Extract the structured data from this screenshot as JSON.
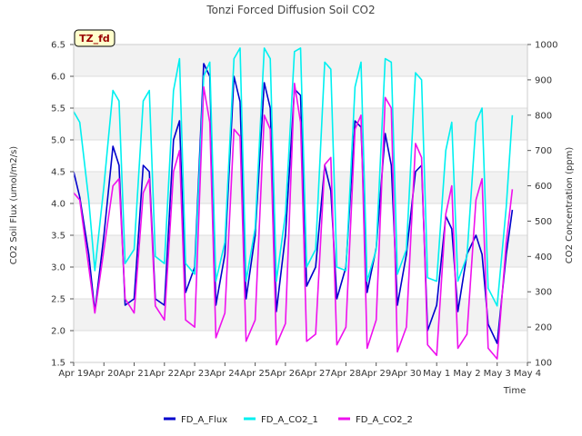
{
  "chart_data": {
    "type": "line",
    "title": "Tonzi Forced Diffusion Soil CO2",
    "site_badge": "TZ_fd",
    "xlabel": "Time",
    "ylabel_left": "CO2 Soil Flux (umol/m2/s)",
    "ylabel_right": "CO2 Concentration (ppm)",
    "x_unit": "day",
    "xlim": [
      0,
      15
    ],
    "ylim_left": [
      1.5,
      6.5
    ],
    "ylim_right": [
      100,
      1000
    ],
    "x_ticks": [
      {
        "value": 0,
        "label": "Apr 19"
      },
      {
        "value": 1,
        "label": "Apr 20"
      },
      {
        "value": 2,
        "label": "Apr 21"
      },
      {
        "value": 3,
        "label": "Apr 22"
      },
      {
        "value": 4,
        "label": "Apr 23"
      },
      {
        "value": 5,
        "label": "Apr 24"
      },
      {
        "value": 6,
        "label": "Apr 25"
      },
      {
        "value": 7,
        "label": "Apr 26"
      },
      {
        "value": 8,
        "label": "Apr 27"
      },
      {
        "value": 9,
        "label": "Apr 28"
      },
      {
        "value": 10,
        "label": "Apr 29"
      },
      {
        "value": 11,
        "label": "Apr 30"
      },
      {
        "value": 12,
        "label": "May 1"
      },
      {
        "value": 13,
        "label": "May 2"
      },
      {
        "value": 14,
        "label": "May 3"
      },
      {
        "value": 15,
        "label": "May 4"
      }
    ],
    "y_ticks_left": [
      "1.5",
      "2.0",
      "2.5",
      "3.0",
      "3.5",
      "4.0",
      "4.5",
      "5.0",
      "5.5",
      "6.0",
      "6.5"
    ],
    "y_ticks_right": [
      "100",
      "200",
      "300",
      "400",
      "500",
      "600",
      "700",
      "800",
      "900",
      "1000"
    ],
    "grid": true,
    "legend_position": "bottom-center",
    "series": [
      {
        "name": "FD_A_Flux",
        "color": "#0000cc",
        "axis": "left",
        "x": [
          0.0,
          0.2,
          0.5,
          0.7,
          1.0,
          1.3,
          1.5,
          1.7,
          2.0,
          2.3,
          2.5,
          2.7,
          3.0,
          3.3,
          3.5,
          3.7,
          4.0,
          4.3,
          4.5,
          4.7,
          5.0,
          5.3,
          5.5,
          5.7,
          6.0,
          6.3,
          6.5,
          6.7,
          7.0,
          7.3,
          7.5,
          7.7,
          8.0,
          8.3,
          8.5,
          8.7,
          9.0,
          9.3,
          9.5,
          9.7,
          10.0,
          10.3,
          10.5,
          10.7,
          11.0,
          11.3,
          11.5,
          11.7,
          12.0,
          12.3,
          12.5,
          12.7,
          13.0,
          13.3,
          13.5,
          13.7,
          14.0,
          14.3,
          14.5
        ],
        "y": [
          4.5,
          4.1,
          3.2,
          2.3,
          3.5,
          4.9,
          4.6,
          2.4,
          2.5,
          4.6,
          4.5,
          2.5,
          2.4,
          5.0,
          5.3,
          2.6,
          3.0,
          6.2,
          6.0,
          2.4,
          3.2,
          6.0,
          5.6,
          2.5,
          3.5,
          5.9,
          5.5,
          2.3,
          3.5,
          5.8,
          5.7,
          2.7,
          3.0,
          4.6,
          4.2,
          2.5,
          3.0,
          5.3,
          5.2,
          2.6,
          3.3,
          5.1,
          4.6,
          2.4,
          3.2,
          4.5,
          4.6,
          2.0,
          2.4,
          3.8,
          3.6,
          2.3,
          3.2,
          3.5,
          3.2,
          2.1,
          1.8,
          3.2,
          3.9
        ]
      },
      {
        "name": "FD_A_CO2_1",
        "color": "#00f0f0",
        "axis": "right",
        "x": [
          0.0,
          0.2,
          0.5,
          0.7,
          1.0,
          1.3,
          1.5,
          1.7,
          2.0,
          2.3,
          2.5,
          2.7,
          3.0,
          3.3,
          3.5,
          3.7,
          4.0,
          4.3,
          4.5,
          4.7,
          5.0,
          5.3,
          5.5,
          5.7,
          6.0,
          6.3,
          6.5,
          6.7,
          7.0,
          7.3,
          7.5,
          7.7,
          8.0,
          8.3,
          8.5,
          8.7,
          9.0,
          9.3,
          9.5,
          9.7,
          10.0,
          10.3,
          10.5,
          10.7,
          11.0,
          11.3,
          11.5,
          11.7,
          12.0,
          12.3,
          12.5,
          12.7,
          13.0,
          13.3,
          13.5,
          13.7,
          14.0,
          14.3,
          14.5
        ],
        "y": [
          810,
          780,
          560,
          360,
          600,
          870,
          840,
          380,
          420,
          840,
          870,
          400,
          380,
          870,
          960,
          380,
          350,
          910,
          950,
          330,
          440,
          960,
          990,
          330,
          480,
          990,
          960,
          330,
          520,
          980,
          990,
          370,
          420,
          950,
          930,
          370,
          360,
          880,
          950,
          330,
          420,
          960,
          950,
          350,
          420,
          920,
          900,
          340,
          330,
          700,
          780,
          330,
          400,
          780,
          820,
          310,
          260,
          540,
          800
        ]
      },
      {
        "name": "FD_A_CO2_2",
        "color": "#ee11ee",
        "axis": "right",
        "x": [
          0.0,
          0.2,
          0.5,
          0.7,
          1.0,
          1.3,
          1.5,
          1.7,
          2.0,
          2.3,
          2.5,
          2.7,
          3.0,
          3.3,
          3.5,
          3.7,
          4.0,
          4.3,
          4.5,
          4.7,
          5.0,
          5.3,
          5.5,
          5.7,
          6.0,
          6.3,
          6.5,
          6.7,
          7.0,
          7.3,
          7.5,
          7.7,
          8.0,
          8.3,
          8.5,
          8.7,
          9.0,
          9.3,
          9.5,
          9.7,
          10.0,
          10.3,
          10.5,
          10.7,
          11.0,
          11.3,
          11.5,
          11.7,
          12.0,
          12.3,
          12.5,
          12.7,
          13.0,
          13.3,
          13.5,
          13.7,
          14.0,
          14.3,
          14.5
        ],
        "y": [
          580,
          560,
          370,
          240,
          420,
          600,
          620,
          280,
          240,
          580,
          620,
          260,
          220,
          640,
          700,
          220,
          200,
          880,
          780,
          170,
          240,
          760,
          740,
          160,
          220,
          800,
          760,
          150,
          210,
          890,
          780,
          160,
          180,
          660,
          680,
          150,
          200,
          760,
          800,
          140,
          220,
          850,
          820,
          130,
          200,
          720,
          680,
          150,
          120,
          520,
          600,
          140,
          180,
          560,
          620,
          140,
          110,
          440,
          590
        ]
      }
    ]
  }
}
